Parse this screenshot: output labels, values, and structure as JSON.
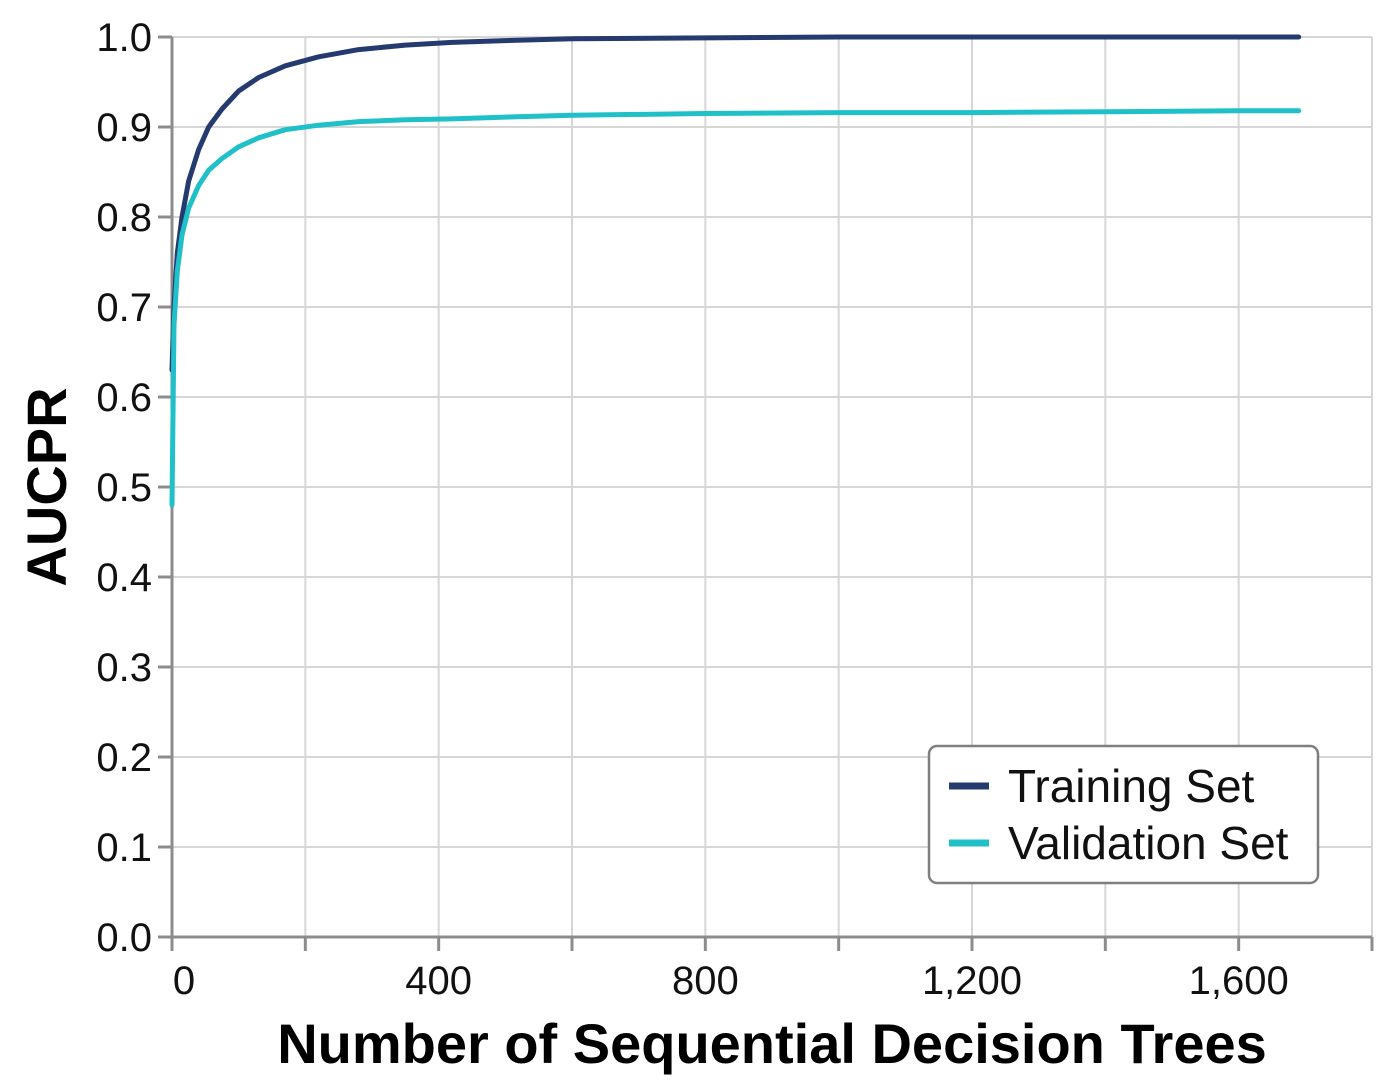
{
  "chart_data": {
    "type": "line",
    "title": "",
    "xlabel": "Number of Sequential Decision Trees",
    "ylabel": "AUCPR",
    "xlim": [
      0,
      1800
    ],
    "ylim": [
      0,
      1.0
    ],
    "x_ticks": [
      0,
      200,
      400,
      600,
      800,
      1000,
      1200,
      1400,
      1600,
      1800
    ],
    "x_tick_labels": [
      "0",
      "400",
      "800",
      "1,200",
      "1,600"
    ],
    "x_tick_label_values": [
      0,
      400,
      800,
      1200,
      1600
    ],
    "y_ticks": [
      0.0,
      0.1,
      0.2,
      0.3,
      0.4,
      0.5,
      0.6,
      0.7,
      0.8,
      0.9,
      1.0
    ],
    "y_tick_labels": [
      "0.0",
      "0.1",
      "0.2",
      "0.3",
      "0.4",
      "0.5",
      "0.6",
      "0.7",
      "0.8",
      "0.9",
      "1.0"
    ],
    "grid": true,
    "legend_position": "bottom-right",
    "series": [
      {
        "name": "Training Set",
        "color": "#253a6e",
        "x": [
          0,
          3,
          8,
          15,
          25,
          40,
          55,
          75,
          100,
          130,
          170,
          220,
          280,
          350,
          420,
          500,
          600,
          800,
          1000,
          1200,
          1400,
          1600,
          1690
        ],
        "y": [
          0.63,
          0.7,
          0.76,
          0.8,
          0.84,
          0.875,
          0.9,
          0.92,
          0.94,
          0.955,
          0.968,
          0.978,
          0.986,
          0.991,
          0.994,
          0.996,
          0.998,
          0.999,
          1.0,
          1.0,
          1.0,
          1.0,
          1.0
        ]
      },
      {
        "name": "Validation Set",
        "color": "#1fc0c8",
        "x": [
          0,
          3,
          8,
          15,
          25,
          40,
          55,
          75,
          100,
          130,
          170,
          220,
          280,
          350,
          420,
          500,
          600,
          800,
          1000,
          1200,
          1400,
          1600,
          1690
        ],
        "y": [
          0.48,
          0.68,
          0.74,
          0.78,
          0.81,
          0.835,
          0.852,
          0.865,
          0.878,
          0.888,
          0.897,
          0.902,
          0.906,
          0.908,
          0.909,
          0.911,
          0.913,
          0.915,
          0.916,
          0.916,
          0.917,
          0.918,
          0.918
        ]
      }
    ]
  }
}
